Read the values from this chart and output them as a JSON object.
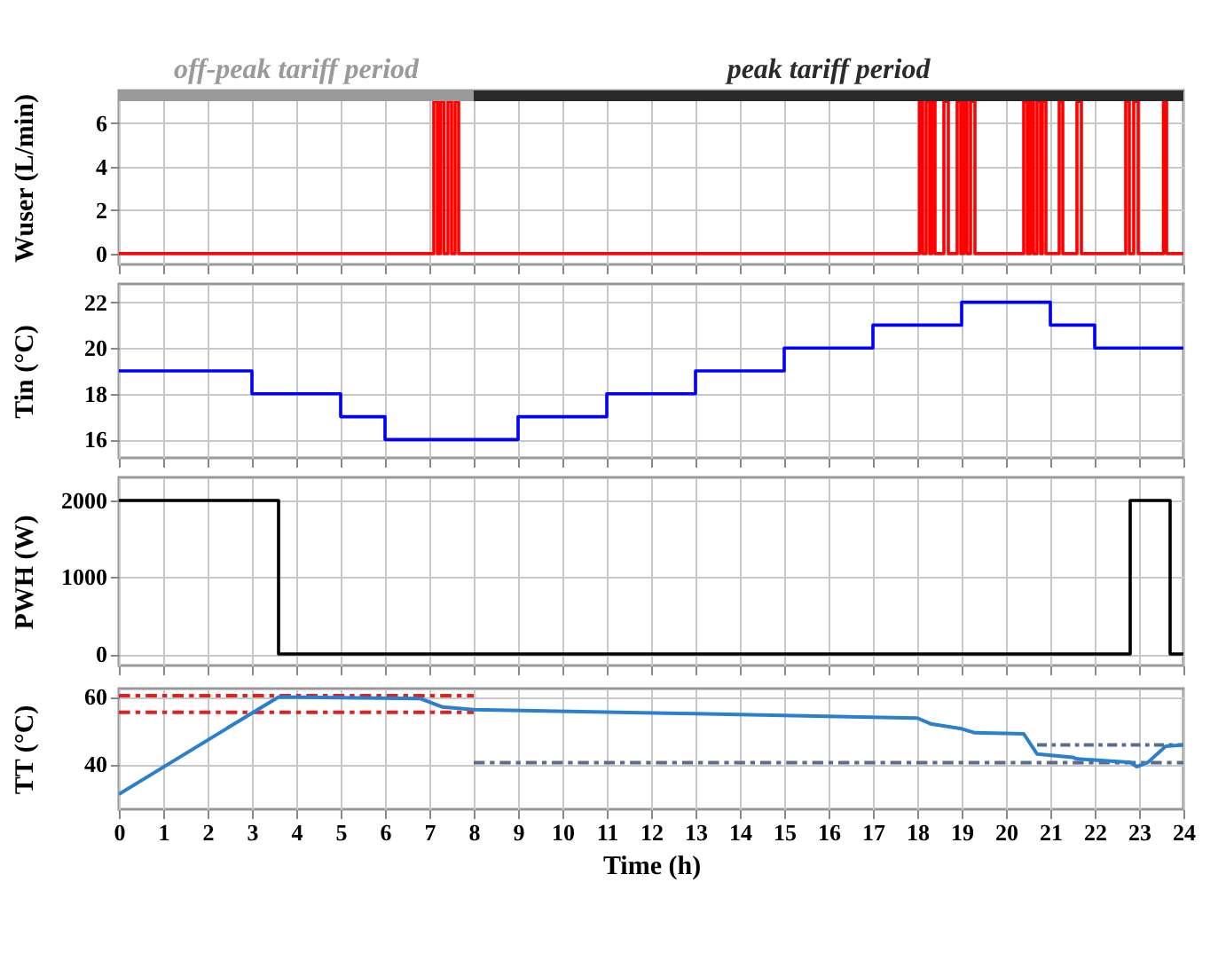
{
  "chart_data": [
    {
      "type": "step",
      "ylabel": "Wuser (L/min)",
      "xlim": [
        0,
        24
      ],
      "xticks": [
        0,
        1,
        2,
        3,
        4,
        5,
        6,
        7,
        8,
        9,
        10,
        11,
        12,
        13,
        14,
        15,
        16,
        17,
        18,
        19,
        20,
        21,
        22,
        23,
        24
      ],
      "ylim": [
        -0.5,
        7.5
      ],
      "yticks": [
        0,
        2,
        4,
        6
      ],
      "grid": true,
      "tick_labels": "y",
      "bands": [
        {
          "axis": "x",
          "from": 0,
          "to": 8,
          "label": "off-peak tariff period",
          "color": "#9a9a9a"
        },
        {
          "axis": "x",
          "from": 8,
          "to": 24,
          "label": "peak tariff period",
          "color": "#2a2a2a"
        }
      ],
      "series": [
        {
          "color": "#ff0000",
          "x": [
            0,
            7.1,
            7.18,
            7.25,
            7.33,
            7.42,
            7.5,
            7.58,
            7.66,
            18.05,
            18.12,
            18.2,
            18.28,
            18.33,
            18.4,
            18.6,
            18.7,
            18.9,
            18.98,
            19.05,
            19.12,
            19.2,
            19.3,
            20.4,
            20.48,
            20.55,
            20.62,
            20.7,
            20.78,
            20.82,
            20.9,
            21.2,
            21.28,
            21.6,
            21.7,
            22.7,
            22.78,
            22.88,
            22.98,
            23.55,
            23.62,
            24
          ],
          "values": [
            0,
            7,
            0,
            7,
            0,
            7,
            0,
            7,
            0,
            7,
            0,
            7,
            0,
            7,
            0,
            7,
            0,
            7,
            0,
            7,
            0,
            7,
            0,
            7,
            0,
            7,
            0,
            7,
            0,
            7,
            0,
            7,
            0,
            7,
            0,
            7,
            0,
            7,
            0,
            7,
            0,
            0
          ]
        }
      ]
    },
    {
      "type": "step",
      "ylabel": "Tin (°C)",
      "xlim": [
        0,
        24
      ],
      "xticks": [
        0,
        1,
        2,
        3,
        4,
        5,
        6,
        7,
        8,
        9,
        10,
        11,
        12,
        13,
        14,
        15,
        16,
        17,
        18,
        19,
        20,
        21,
        22,
        23,
        24
      ],
      "ylim": [
        15.2,
        22.8
      ],
      "yticks": [
        16,
        18,
        20,
        22
      ],
      "grid": true,
      "tick_labels": "y",
      "series": [
        {
          "color": "#0000ff",
          "x": [
            0,
            3,
            5,
            6,
            9,
            11,
            13,
            15,
            17,
            19,
            21,
            22,
            24
          ],
          "values": [
            19,
            18,
            17,
            16,
            17,
            18,
            19,
            20,
            21,
            22,
            21,
            20,
            20
          ]
        }
      ]
    },
    {
      "type": "step",
      "ylabel": "PWH (W)",
      "xlim": [
        0,
        24
      ],
      "xticks": [
        0,
        1,
        2,
        3,
        4,
        5,
        6,
        7,
        8,
        9,
        10,
        11,
        12,
        13,
        14,
        15,
        16,
        17,
        18,
        19,
        20,
        21,
        22,
        23,
        24
      ],
      "ylim": [
        -150,
        2300
      ],
      "yticks": [
        0,
        1000,
        2000
      ],
      "grid": true,
      "tick_labels": "y",
      "series": [
        {
          "color": "#000000",
          "x": [
            0,
            3.6,
            22.8,
            23.7,
            24
          ],
          "values": [
            2000,
            0,
            2000,
            0,
            0
          ]
        }
      ]
    },
    {
      "type": "line",
      "ylabel": "TT (°C)",
      "xlabel": "Time (h)",
      "xlim": [
        0,
        24
      ],
      "xticks": [
        0,
        1,
        2,
        3,
        4,
        5,
        6,
        7,
        8,
        9,
        10,
        11,
        12,
        13,
        14,
        15,
        16,
        17,
        18,
        19,
        20,
        21,
        22,
        23,
        24
      ],
      "ylim": [
        26.5,
        62.5
      ],
      "yticks": [
        40,
        60
      ],
      "grid": true,
      "series": [
        {
          "color": "#dd2222",
          "line_style": "dashed",
          "x": [
            0,
            8
          ],
          "values": [
            60.4,
            60.4
          ]
        },
        {
          "color": "#dd2222",
          "line_style": "dashed",
          "x": [
            0,
            8
          ],
          "values": [
            55.4,
            55.4
          ]
        },
        {
          "color": "#5a6e8c",
          "line_style": "dashed",
          "x": [
            8,
            24
          ],
          "values": [
            40.4,
            40.4
          ]
        },
        {
          "color": "#5a6e8c",
          "line_style": "dashed",
          "x": [
            20.7,
            24
          ],
          "values": [
            45.7,
            45.7
          ]
        },
        {
          "color": "#2a7fcf",
          "line_style": "solid",
          "x": [
            0,
            3.6,
            6.8,
            7.3,
            8,
            13,
            18,
            18.3,
            19,
            19.3,
            20.4,
            20.6,
            20.7,
            21.5,
            21.6,
            22.8,
            22.95,
            23.2,
            23.6,
            24
          ],
          "values": [
            31,
            60,
            59.5,
            57,
            56.2,
            55,
            53.7,
            52,
            50.5,
            49.3,
            49,
            45,
            43,
            42,
            41.5,
            40.5,
            39.2,
            40.5,
            45.3,
            45.7
          ]
        }
      ]
    }
  ]
}
